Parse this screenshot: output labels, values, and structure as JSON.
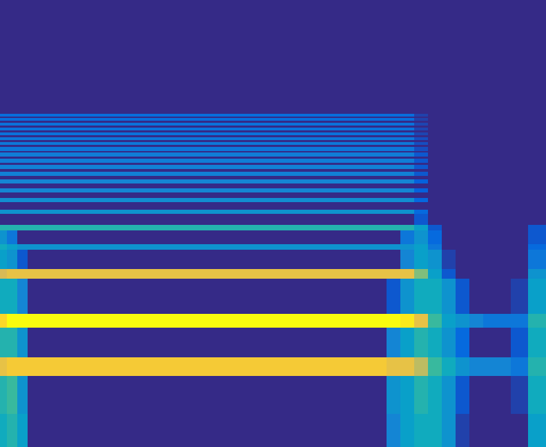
{
  "chart_data": {
    "type": "heatmap",
    "color": "parula",
    "tick_labels": false,
    "grid": false,
    "xlim": [
      0,
      791
    ],
    "ylim": [
      0,
      648
    ],
    "zlim": [
      0,
      1
    ],
    "x": [
      0,
      10,
      25,
      40,
      560,
      580,
      600,
      620,
      640,
      660,
      680,
      700,
      740,
      765,
      791
    ],
    "y": [
      0,
      48,
      103,
      130,
      173,
      193,
      244,
      258,
      286,
      294,
      314,
      322,
      338,
      344,
      355,
      361,
      369,
      375,
      382,
      388,
      393,
      399,
      403,
      409,
      412,
      418,
      421,
      427,
      429,
      435,
      438,
      442,
      445,
      449,
      452,
      456,
      459,
      463,
      466,
      470,
      473,
      477,
      479,
      483,
      648
    ],
    "z": [
      [
        0.4,
        0.45,
        0.35,
        0,
        0.25,
        0.35,
        0.4,
        0.4,
        0.3,
        0.05,
        0,
        0,
        0,
        0.35
      ],
      [
        0.45,
        0.5,
        0.3,
        0,
        0.3,
        0.35,
        0.45,
        0.4,
        0.3,
        0.1,
        0,
        0,
        0.05,
        0.4
      ],
      [
        0.8,
        0.85,
        0.85,
        0.85,
        0.8,
        0.8,
        0.7,
        0.5,
        0.4,
        0.3,
        0.25,
        0.25,
        0.2,
        0.45
      ],
      [
        0.45,
        0.45,
        0.3,
        0,
        0.25,
        0.35,
        0.45,
        0.4,
        0.3,
        0.15,
        0,
        0,
        0.1,
        0.4
      ],
      [
        0.9,
        1.0,
        1.0,
        1.0,
        1.0,
        0.95,
        0.8,
        0.5,
        0.35,
        0.3,
        0.25,
        0.2,
        0.2,
        0.45
      ],
      [
        0.4,
        0.4,
        0.25,
        0,
        0.1,
        0.3,
        0.4,
        0.4,
        0.3,
        0.1,
        0,
        0,
        0.05,
        0.35
      ],
      [
        0.75,
        0.8,
        0.8,
        0.8,
        0.8,
        0.8,
        0.6,
        0.35,
        0.1,
        0,
        0,
        0,
        0,
        0.3
      ],
      [
        0.35,
        0.3,
        0.1,
        0,
        0,
        0.25,
        0.35,
        0.3,
        0.05,
        0,
        0,
        0,
        0,
        0.2
      ],
      [
        0.4,
        0.35,
        0.3,
        0.3,
        0.3,
        0.3,
        0.35,
        0.2,
        0,
        0,
        0,
        0,
        0,
        0.15
      ],
      [
        0.3,
        0.2,
        0,
        0,
        0,
        0.2,
        0.3,
        0.15,
        0,
        0,
        0,
        0,
        0,
        0.1
      ],
      [
        0.45,
        0.45,
        0.45,
        0.45,
        0.45,
        0.45,
        0.35,
        0.1,
        0,
        0,
        0,
        0,
        0,
        0.1
      ],
      [
        0,
        0,
        0,
        0,
        0,
        0,
        0.1,
        0,
        0,
        0,
        0,
        0,
        0,
        0
      ],
      [
        0.3,
        0.3,
        0.3,
        0.3,
        0.3,
        0.3,
        0.15,
        0,
        0,
        0,
        0,
        0,
        0,
        0
      ],
      [
        0,
        0,
        0,
        0,
        0,
        0,
        0,
        0,
        0,
        0,
        0,
        0,
        0,
        0
      ],
      [
        0.28,
        0.28,
        0.28,
        0.28,
        0.28,
        0.28,
        0.14,
        0,
        0,
        0,
        0,
        0,
        0,
        0
      ],
      [
        0,
        0,
        0,
        0,
        0,
        0,
        0,
        0,
        0,
        0,
        0,
        0,
        0,
        0
      ],
      [
        0.25,
        0.25,
        0.25,
        0.25,
        0.25,
        0.25,
        0.12,
        0,
        0,
        0,
        0,
        0,
        0,
        0
      ],
      [
        0,
        0,
        0,
        0,
        0,
        0,
        0,
        0,
        0,
        0,
        0,
        0,
        0,
        0
      ],
      [
        0.25,
        0.25,
        0.25,
        0.25,
        0.25,
        0.25,
        0.12,
        0,
        0,
        0,
        0,
        0,
        0,
        0
      ],
      [
        0,
        0,
        0,
        0,
        0,
        0,
        0,
        0,
        0,
        0,
        0,
        0,
        0,
        0
      ],
      [
        0.23,
        0.23,
        0.23,
        0.23,
        0.23,
        0.23,
        0.1,
        0,
        0,
        0,
        0,
        0,
        0,
        0
      ],
      [
        0,
        0,
        0,
        0,
        0,
        0,
        0,
        0,
        0,
        0,
        0,
        0,
        0,
        0
      ],
      [
        0.23,
        0.23,
        0.23,
        0.23,
        0.23,
        0.23,
        0.1,
        0,
        0,
        0,
        0,
        0,
        0,
        0
      ],
      [
        0,
        0,
        0,
        0,
        0,
        0,
        0,
        0,
        0,
        0,
        0,
        0,
        0,
        0
      ],
      [
        0.22,
        0.22,
        0.22,
        0.22,
        0.22,
        0.22,
        0.1,
        0,
        0,
        0,
        0,
        0,
        0,
        0
      ],
      [
        0,
        0,
        0,
        0,
        0,
        0,
        0,
        0,
        0,
        0,
        0,
        0,
        0,
        0
      ],
      [
        0.22,
        0.22,
        0.22,
        0.22,
        0.22,
        0.22,
        0.1,
        0,
        0,
        0,
        0,
        0,
        0,
        0
      ],
      [
        0,
        0,
        0,
        0,
        0,
        0,
        0,
        0,
        0,
        0,
        0,
        0,
        0,
        0
      ],
      [
        0.2,
        0.2,
        0.2,
        0.2,
        0.2,
        0.2,
        0.08,
        0,
        0,
        0,
        0,
        0,
        0,
        0
      ],
      [
        0,
        0,
        0,
        0,
        0,
        0,
        0,
        0,
        0,
        0,
        0,
        0,
        0,
        0
      ],
      [
        0.2,
        0.2,
        0.2,
        0.2,
        0.2,
        0.2,
        0.08,
        0,
        0,
        0,
        0,
        0,
        0,
        0
      ],
      [
        0,
        0,
        0,
        0,
        0,
        0,
        0,
        0,
        0,
        0,
        0,
        0,
        0,
        0
      ],
      [
        0.2,
        0.2,
        0.2,
        0.2,
        0.2,
        0.2,
        0.08,
        0,
        0,
        0,
        0,
        0,
        0,
        0
      ],
      [
        0,
        0,
        0,
        0,
        0,
        0,
        0,
        0,
        0,
        0,
        0,
        0,
        0,
        0
      ],
      [
        0.18,
        0.18,
        0.18,
        0.18,
        0.18,
        0.18,
        0.06,
        0,
        0,
        0,
        0,
        0,
        0,
        0
      ],
      [
        0,
        0,
        0,
        0,
        0,
        0,
        0,
        0,
        0,
        0,
        0,
        0,
        0,
        0
      ],
      [
        0.18,
        0.18,
        0.18,
        0.18,
        0.18,
        0.18,
        0.06,
        0,
        0,
        0,
        0,
        0,
        0,
        0
      ],
      [
        0,
        0,
        0,
        0,
        0,
        0,
        0,
        0,
        0,
        0,
        0,
        0,
        0,
        0
      ],
      [
        0.18,
        0.18,
        0.18,
        0.18,
        0.18,
        0.18,
        0.06,
        0,
        0,
        0,
        0,
        0,
        0,
        0
      ],
      [
        0,
        0,
        0,
        0,
        0,
        0,
        0,
        0,
        0,
        0,
        0,
        0,
        0,
        0
      ],
      [
        0.16,
        0.16,
        0.16,
        0.16,
        0.16,
        0.16,
        0.05,
        0,
        0,
        0,
        0,
        0,
        0,
        0
      ],
      [
        0,
        0,
        0,
        0,
        0,
        0,
        0,
        0,
        0,
        0,
        0,
        0,
        0,
        0
      ],
      [
        0.16,
        0.16,
        0.16,
        0.16,
        0.16,
        0.16,
        0.05,
        0,
        0,
        0,
        0,
        0,
        0,
        0
      ],
      [
        0,
        0,
        0,
        0,
        0,
        0,
        0,
        0,
        0,
        0,
        0,
        0,
        0,
        0
      ]
    ]
  }
}
